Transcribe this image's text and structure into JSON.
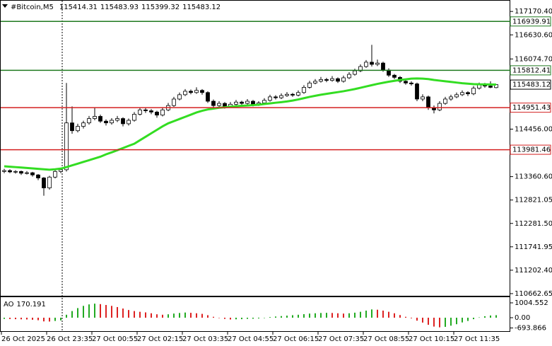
{
  "chart_data": [
    {
      "type": "candlestick",
      "symbol": "#Bitcoin,M5",
      "header_values": [
        115414.31,
        115483.93,
        115399.32,
        115483.12
      ],
      "ylim": [
        110613,
        117418
      ],
      "yticks": [
        {
          "value": 117170.4,
          "label": "117170.40"
        },
        {
          "value": 116630.6,
          "label": "116630.60"
        },
        {
          "value": 116074.7,
          "label": "116074.70"
        },
        {
          "value": 114456,
          "label": "114456.00"
        },
        {
          "value": 113360.6,
          "label": "113360.60"
        },
        112821.05,
        {
          "value": 112281.5,
          "label": "112281.50"
        },
        111741.95,
        {
          "value": 111202.4,
          "label": "111202.40"
        },
        110662.65
      ],
      "levels": [
        {
          "value": 116939.91,
          "color": "#1f7a1f"
        },
        {
          "value": 115812.41,
          "color": "#1f7a1f"
        },
        {
          "value": 114951.43,
          "color": "#d42020"
        },
        {
          "value": 113981.46,
          "color": "#d42020"
        }
      ],
      "last_price": 115483.12,
      "ma_color": "#33dd22",
      "ohlc": [
        [
          113480,
          113540,
          113440,
          113500
        ],
        [
          113500,
          113530,
          113440,
          113470
        ],
        [
          113470,
          113510,
          113430,
          113480
        ],
        [
          113480,
          113500,
          113400,
          113440
        ],
        [
          113440,
          113490,
          113410,
          113450
        ],
        [
          113450,
          113470,
          113360,
          113400
        ],
        [
          113400,
          113420,
          113280,
          113330
        ],
        [
          113330,
          113350,
          112920,
          113100
        ],
        [
          113100,
          113380,
          113060,
          113350
        ],
        [
          113350,
          113520,
          113320,
          113480
        ],
        [
          113480,
          113560,
          113440,
          113520
        ],
        [
          113520,
          115520,
          113480,
          114600
        ],
        [
          114600,
          114980,
          114350,
          114420
        ],
        [
          114420,
          114580,
          114380,
          114520
        ],
        [
          114520,
          114650,
          114470,
          114600
        ],
        [
          114600,
          114760,
          114560,
          114700
        ],
        [
          114700,
          114950,
          114660,
          114750
        ],
        [
          114750,
          114790,
          114600,
          114640
        ],
        [
          114640,
          114680,
          114540,
          114600
        ],
        [
          114600,
          114710,
          114560,
          114660
        ],
        [
          114660,
          114760,
          114620,
          114700
        ],
        [
          114700,
          114730,
          114520,
          114580
        ],
        [
          114580,
          114700,
          114540,
          114660
        ],
        [
          114660,
          114850,
          114630,
          114800
        ],
        [
          114800,
          114960,
          114770,
          114900
        ],
        [
          114900,
          114950,
          114830,
          114880
        ],
        [
          114880,
          114920,
          114800,
          114850
        ],
        [
          114850,
          114880,
          114720,
          114780
        ],
        [
          114780,
          114950,
          114750,
          114900
        ],
        [
          114900,
          115060,
          114870,
          115000
        ],
        [
          115000,
          115200,
          114970,
          115150
        ],
        [
          115150,
          115300,
          115120,
          115250
        ],
        [
          115250,
          115380,
          115220,
          115330
        ],
        [
          115330,
          115370,
          115260,
          115300
        ],
        [
          115300,
          115420,
          115270,
          115350
        ],
        [
          115350,
          115380,
          115250,
          115300
        ],
        [
          115300,
          115330,
          115060,
          115100
        ],
        [
          115100,
          115140,
          114950,
          115000
        ],
        [
          115000,
          115100,
          114960,
          115050
        ],
        [
          115050,
          115080,
          114930,
          114980
        ],
        [
          114980,
          115080,
          114950,
          115030
        ],
        [
          115030,
          115130,
          115000,
          115080
        ],
        [
          115080,
          115110,
          115000,
          115050
        ],
        [
          115050,
          115150,
          115020,
          115100
        ],
        [
          115100,
          115130,
          114980,
          115020
        ],
        [
          115020,
          115100,
          114990,
          115060
        ],
        [
          115060,
          115170,
          115030,
          115120
        ],
        [
          115120,
          115250,
          115090,
          115200
        ],
        [
          115200,
          115240,
          115140,
          115180
        ],
        [
          115180,
          115280,
          115150,
          115230
        ],
        [
          115230,
          115310,
          115200,
          115260
        ],
        [
          115260,
          115290,
          115200,
          115240
        ],
        [
          115240,
          115350,
          115210,
          115300
        ],
        [
          115300,
          115470,
          115270,
          115420
        ],
        [
          115420,
          115570,
          115390,
          115520
        ],
        [
          115520,
          115610,
          115490,
          115560
        ],
        [
          115560,
          115660,
          115530,
          115600
        ],
        [
          115600,
          115640,
          115540,
          115580
        ],
        [
          115580,
          115680,
          115550,
          115620
        ],
        [
          115620,
          115650,
          115520,
          115560
        ],
        [
          115560,
          115690,
          115530,
          115640
        ],
        [
          115640,
          115770,
          115610,
          115720
        ],
        [
          115720,
          115850,
          115690,
          115800
        ],
        [
          115800,
          115950,
          115770,
          115900
        ],
        [
          115900,
          116050,
          115870,
          116000
        ],
        [
          116000,
          116400,
          115900,
          115950
        ],
        [
          115950,
          116060,
          115910,
          115980
        ],
        [
          115980,
          116010,
          115780,
          115820
        ],
        [
          115820,
          115860,
          115660,
          115700
        ],
        [
          115700,
          115730,
          115610,
          115650
        ],
        [
          115650,
          115680,
          115520,
          115560
        ],
        [
          115560,
          115600,
          115480,
          115520
        ],
        [
          115520,
          115560,
          115460,
          115500
        ],
        [
          115500,
          115530,
          115100,
          115150
        ],
        [
          115150,
          115260,
          115100,
          115200
        ],
        [
          115200,
          115230,
          114900,
          114950
        ],
        [
          114950,
          115000,
          114820,
          114900
        ],
        [
          114900,
          115100,
          114870,
          115050
        ],
        [
          115050,
          115200,
          115020,
          115150
        ],
        [
          115150,
          115250,
          115110,
          115200
        ],
        [
          115200,
          115300,
          115170,
          115250
        ],
        [
          115250,
          115350,
          115220,
          115300
        ],
        [
          115300,
          115330,
          115220,
          115270
        ],
        [
          115270,
          115450,
          115240,
          115400
        ],
        [
          115400,
          115530,
          115370,
          115480
        ],
        [
          115480,
          115520,
          115410,
          115450
        ],
        [
          115450,
          115560,
          115400,
          115420
        ],
        [
          115414.31,
          115483.93,
          115399.32,
          115483.12
        ]
      ],
      "ma": [
        113600,
        113590,
        113580,
        113570,
        113560,
        113550,
        113540,
        113530,
        113520,
        113530,
        113546,
        113580,
        113620,
        113660,
        113700,
        113740,
        113780,
        113820,
        113875,
        113920,
        113970,
        114020,
        114070,
        114120,
        114200,
        114280,
        114360,
        114440,
        114520,
        114590,
        114640,
        114690,
        114740,
        114790,
        114840,
        114880,
        114910,
        114930,
        114950,
        114960,
        114975,
        114985,
        114995,
        115000,
        115010,
        115020,
        115035,
        115050,
        115065,
        115078,
        115095,
        115115,
        115140,
        115170,
        115200,
        115225,
        115250,
        115270,
        115290,
        115310,
        115330,
        115355,
        115380,
        115410,
        115440,
        115470,
        115500,
        115525,
        115550,
        115570,
        115590,
        115605,
        115620,
        115625,
        115620,
        115610,
        115590,
        115575,
        115560,
        115545,
        115530,
        115515,
        115505,
        115495,
        115490,
        115488,
        115486,
        115485
      ]
    },
    {
      "type": "bar",
      "title": "AO",
      "current_value": 170.191,
      "up_color": "#22aa22",
      "down_color": "#dd2222",
      "ylim": [
        -861,
        1340
      ],
      "yticks": [
        1004.552,
        {
          "value": 0,
          "label": "0.00"
        },
        -693.866
      ],
      "categories": [
        "26 Oct 2025",
        null,
        null,
        null,
        null,
        null,
        null,
        null,
        "26 Oct 23:35",
        null,
        null,
        null,
        null,
        null,
        null,
        null,
        "27 Oct 00:55",
        null,
        null,
        null,
        null,
        null,
        null,
        null,
        "27 Oct 02:15",
        null,
        null,
        null,
        null,
        null,
        null,
        null,
        "27 Oct 03:35",
        null,
        null,
        null,
        null,
        null,
        null,
        null,
        "27 Oct 04:55",
        null,
        null,
        null,
        null,
        null,
        null,
        null,
        "27 Oct 06:15",
        null,
        null,
        null,
        null,
        null,
        null,
        null,
        "27 Oct 07:35",
        null,
        null,
        null,
        null,
        null,
        null,
        null,
        "27 Oct 08:55",
        null,
        null,
        null,
        null,
        null,
        null,
        null,
        "27 Oct 10:15",
        null,
        null,
        null,
        null,
        null,
        null,
        null,
        "27 Oct 11:35",
        null,
        null,
        null,
        null,
        null,
        null,
        null
      ],
      "values": [
        -80,
        -90,
        -100,
        -110,
        -120,
        -140,
        -170,
        -250,
        -260,
        -220,
        -180,
        200,
        450,
        650,
        800,
        900,
        950,
        920,
        860,
        800,
        720,
        620,
        520,
        450,
        400,
        360,
        300,
        230,
        200,
        230,
        280,
        320,
        350,
        330,
        300,
        260,
        170,
        60,
        -20,
        -80,
        -120,
        -110,
        -100,
        -80,
        -70,
        -50,
        0,
        40,
        80,
        110,
        140,
        170,
        200,
        240,
        280,
        300,
        320,
        330,
        320,
        300,
        280,
        300,
        340,
        400,
        480,
        560,
        540,
        480,
        400,
        300,
        180,
        60,
        -40,
        -200,
        -330,
        -480,
        -600,
        -650,
        -620,
        -540,
        -440,
        -320,
        -220,
        -100,
        20,
        100,
        150,
        170.191
      ]
    }
  ]
}
